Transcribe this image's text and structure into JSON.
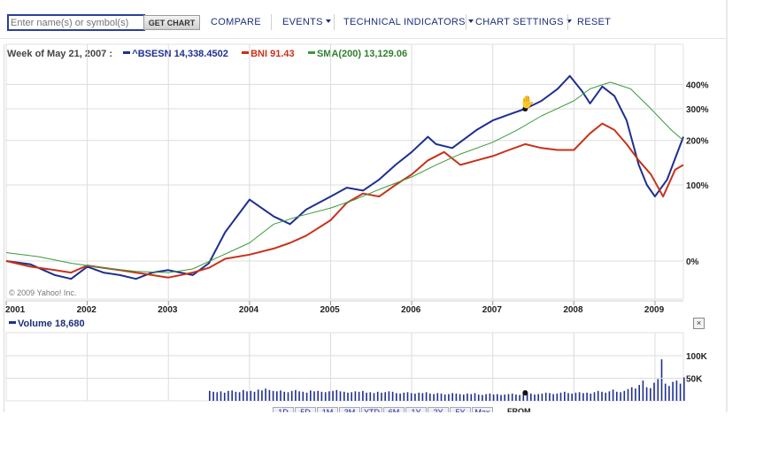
{
  "toolbar": {
    "symbol_placeholder": "Enter name(s) or symbol(s)",
    "get_chart_label": "GET CHART",
    "compare_label": "COMPARE",
    "events_label": "EVENTS",
    "technical_indicators_label": "TECHNICAL INDICATORS",
    "chart_settings_label": "CHART SETTINGS",
    "reset_label": "RESET"
  },
  "legend": {
    "week_label": "Week of May 21, 2007 :",
    "bsesn_label": "^BSESN",
    "bsesn_value": "14,338.4502",
    "bni_label": "BNI",
    "bni_value": "91.43",
    "sma_label": "SMA(200)",
    "sma_value": "13,129.06"
  },
  "colors": {
    "bsesn": "#1f2f8f",
    "bni": "#c8321a",
    "sma": "#3a9a3a",
    "volume": "#1f2f8f",
    "grid": "#dcdcdc"
  },
  "copyright": "© 2009 Yahoo! Inc.",
  "volume": {
    "title": "Volume",
    "value": "18,680",
    "close_label": "×"
  },
  "range_buttons": [
    "1D",
    "5D",
    "1M",
    "3M",
    "YTD",
    "6M",
    "1Y",
    "2Y",
    "5Y",
    "Max"
  ],
  "date_from_label": "FROM",
  "chart_data": [
    {
      "type": "line",
      "x_ticks": [
        "2001",
        "2002",
        "2003",
        "2004",
        "2005",
        "2006",
        "2007",
        "2008",
        "2009"
      ],
      "y_ticks": [
        "0%",
        "100%",
        "200%",
        "300%",
        "400%"
      ],
      "scale": "log",
      "grid": true,
      "series": [
        {
          "name": "^BSESN",
          "x": [
            2001.0,
            2001.3,
            2001.6,
            2001.8,
            2002.0,
            2002.2,
            2002.4,
            2002.6,
            2002.8,
            2003.0,
            2003.3,
            2003.5,
            2003.7,
            2004.0,
            2004.3,
            2004.5,
            2004.7,
            2005.0,
            2005.2,
            2005.4,
            2005.6,
            2005.8,
            2006.0,
            2006.2,
            2006.3,
            2006.5,
            2006.8,
            2007.0,
            2007.2,
            2007.4,
            2007.6,
            2007.8,
            2007.95,
            2008.1,
            2008.2,
            2008.35,
            2008.5,
            2008.65,
            2008.8,
            2008.9,
            2009.0,
            2009.15,
            2009.35
          ],
          "values": [
            0,
            -3,
            -12,
            -15,
            -5,
            -10,
            -12,
            -15,
            -10,
            -8,
            -12,
            -2,
            30,
            75,
            50,
            40,
            60,
            80,
            95,
            90,
            110,
            140,
            170,
            210,
            190,
            180,
            230,
            260,
            280,
            300,
            330,
            380,
            440,
            370,
            320,
            390,
            350,
            260,
            140,
            100,
            80,
            110,
            210
          ]
        },
        {
          "name": "BNI",
          "x": [
            2001.0,
            2001.3,
            2001.6,
            2001.8,
            2002.0,
            2002.2,
            2002.4,
            2002.6,
            2002.8,
            2003.0,
            2003.3,
            2003.5,
            2003.7,
            2004.0,
            2004.3,
            2004.5,
            2004.7,
            2005.0,
            2005.2,
            2005.4,
            2005.6,
            2005.8,
            2006.0,
            2006.2,
            2006.4,
            2006.6,
            2006.8,
            2007.0,
            2007.2,
            2007.4,
            2007.6,
            2007.8,
            2008.0,
            2008.2,
            2008.35,
            2008.5,
            2008.65,
            2008.8,
            2008.95,
            2009.1,
            2009.25,
            2009.35
          ],
          "values": [
            0,
            -5,
            -8,
            -10,
            -4,
            -6,
            -8,
            -10,
            -12,
            -14,
            -10,
            -6,
            2,
            6,
            12,
            18,
            26,
            45,
            70,
            85,
            80,
            100,
            120,
            150,
            170,
            140,
            150,
            160,
            175,
            190,
            180,
            175,
            175,
            220,
            250,
            230,
            190,
            150,
            120,
            80,
            130,
            140
          ]
        },
        {
          "name": "SMA(200)",
          "x": [
            2001.0,
            2001.4,
            2001.8,
            2002.2,
            2002.6,
            2003.0,
            2003.3,
            2003.6,
            2004.0,
            2004.3,
            2004.6,
            2005.0,
            2005.3,
            2005.6,
            2006.0,
            2006.3,
            2006.6,
            2007.0,
            2007.3,
            2007.6,
            2008.0,
            2008.2,
            2008.45,
            2008.7,
            2008.95,
            2009.2,
            2009.35
          ],
          "values": [
            8,
            4,
            -2,
            -6,
            -9,
            -10,
            -7,
            3,
            18,
            40,
            50,
            62,
            75,
            92,
            115,
            140,
            165,
            195,
            230,
            275,
            330,
            380,
            410,
            380,
            300,
            230,
            200
          ]
        }
      ]
    },
    {
      "type": "bar",
      "title": "Volume",
      "y_ticks": [
        "50K",
        "100K"
      ],
      "x_range": [
        2003.5,
        2009.35
      ],
      "values": [
        22,
        20,
        19,
        21,
        18,
        22,
        23,
        20,
        19,
        24,
        21,
        22,
        20,
        25,
        23,
        27,
        24,
        22,
        21,
        23,
        20,
        19,
        22,
        24,
        21,
        20,
        18,
        23,
        21,
        22,
        20,
        19,
        21,
        22,
        24,
        21,
        20,
        18,
        19,
        21,
        20,
        22,
        18,
        19,
        17,
        20,
        18,
        19,
        21,
        20,
        17,
        16,
        18,
        19,
        17,
        16,
        18,
        17,
        19,
        16,
        15,
        17,
        16,
        14,
        15,
        17,
        16,
        15,
        14,
        16,
        15,
        17,
        14,
        13,
        15,
        16,
        14,
        15,
        13,
        14,
        15,
        16,
        14,
        13,
        15,
        17,
        16,
        14,
        15,
        16,
        18,
        17,
        15,
        16,
        18,
        20,
        17,
        16,
        18,
        19,
        17,
        18,
        16,
        19,
        22,
        20,
        18,
        21,
        25,
        20,
        19,
        22,
        26,
        30,
        27,
        35,
        45,
        30,
        28,
        40,
        48,
        92,
        38,
        33,
        42,
        45,
        38,
        52
      ]
    }
  ]
}
